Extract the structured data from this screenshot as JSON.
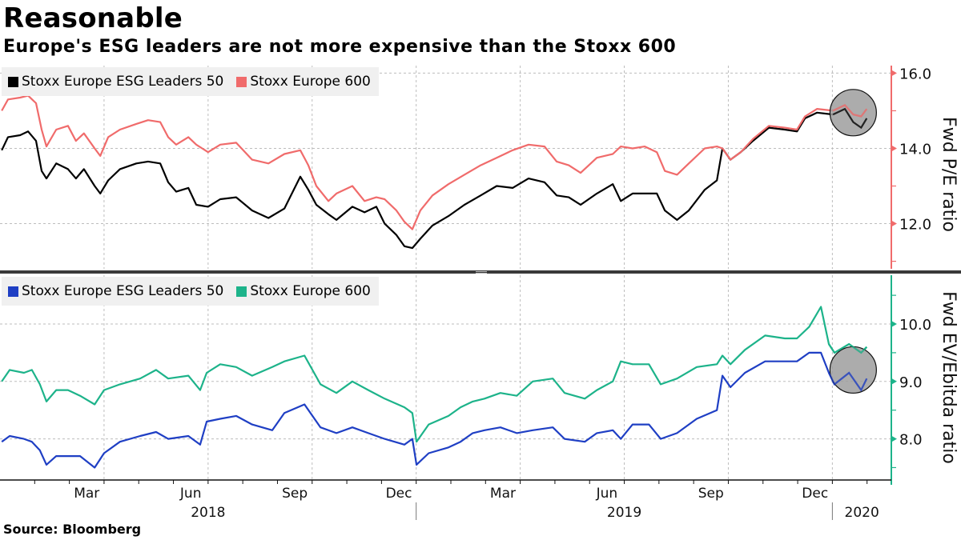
{
  "title": "Reasonable",
  "subtitle": "Europe's ESG leaders are not more expensive than the Stoxx 600",
  "source": "Source: Bloomberg",
  "colors": {
    "pe_esg": "#000000",
    "pe_stoxx": "#f06b6b",
    "pe_axis": "#f06b6b",
    "ev_esg": "#1f3fc4",
    "ev_stoxx": "#1db38a",
    "ev_axis": "#1db38a",
    "highlight": "#9e9e9e",
    "divider": "#3a3a3a"
  },
  "x_axis": {
    "unit": "months since Jan 2018",
    "month_labels": [
      {
        "label": "Mar",
        "month": 2.0
      },
      {
        "label": "Jun",
        "month": 5.0
      },
      {
        "label": "Sep",
        "month": 8.0
      },
      {
        "label": "Dec",
        "month": 11.0
      },
      {
        "label": "Mar",
        "month": 14.0
      },
      {
        "label": "Jun",
        "month": 17.0
      },
      {
        "label": "Sep",
        "month": 20.0
      },
      {
        "label": "Dec",
        "month": 23.0
      }
    ],
    "year_labels": [
      {
        "label": "2018",
        "month": 6.0
      },
      {
        "label": "2019",
        "month": 18.0
      },
      {
        "label": "2020",
        "month": 24.85
      }
    ],
    "year_dividers": [
      12.0,
      24.0
    ],
    "quarter_gridlines": [
      3,
      6,
      9,
      12,
      15,
      18,
      21,
      24
    ],
    "range": [
      0,
      25.7
    ]
  },
  "chart_data": [
    {
      "type": "line",
      "title": "Fwd P/E",
      "ylabel": "Fwd P/E ratio",
      "ylim": [
        10.8,
        16.2
      ],
      "yticks": [
        {
          "value": 16.0,
          "label": "16.0"
        },
        {
          "value": 14.0,
          "label": "14.0"
        },
        {
          "value": 12.0,
          "label": "12.0"
        }
      ],
      "minor_ticks": [
        15.0,
        13.0,
        11.0
      ],
      "grid": true,
      "legend_position": "top-left",
      "x": [
        0.05,
        0.23,
        0.58,
        0.81,
        1.04,
        1.2,
        1.34,
        1.62,
        1.96,
        2.19,
        2.42,
        2.73,
        2.89,
        3.12,
        3.46,
        3.93,
        4.27,
        4.62,
        4.85,
        5.08,
        5.43,
        5.66,
        6.0,
        6.35,
        6.81,
        7.27,
        7.74,
        8.2,
        8.66,
        8.89,
        9.12,
        9.47,
        9.7,
        10.16,
        10.51,
        10.85,
        11.09,
        11.43,
        11.66,
        11.89,
        12.12,
        12.47,
        12.93,
        13.39,
        13.86,
        14.32,
        14.78,
        15.24,
        15.7,
        16.05,
        16.4,
        16.74,
        17.21,
        17.67,
        17.9,
        18.24,
        18.59,
        18.94,
        19.17,
        19.52,
        19.86,
        20.32,
        20.67,
        20.83,
        21.06,
        21.36,
        21.71,
        22.17,
        22.63,
        22.98,
        23.21,
        23.56,
        24.02,
        24.36,
        24.6,
        24.83,
        24.99
      ],
      "series": [
        {
          "name": "Stoxx Europe ESG Leaders 50",
          "color_key": "pe_esg",
          "values": [
            13.95,
            14.3,
            14.35,
            14.45,
            14.2,
            13.4,
            13.2,
            13.6,
            13.45,
            13.2,
            13.45,
            13.0,
            12.8,
            13.15,
            13.45,
            13.6,
            13.65,
            13.6,
            13.1,
            12.85,
            12.95,
            12.5,
            12.45,
            12.65,
            12.7,
            12.35,
            12.15,
            12.4,
            13.25,
            12.9,
            12.5,
            12.25,
            12.1,
            12.45,
            12.3,
            12.45,
            12.0,
            11.7,
            11.4,
            11.35,
            11.6,
            11.95,
            12.2,
            12.5,
            12.75,
            13.0,
            12.95,
            13.2,
            13.1,
            12.75,
            12.7,
            12.5,
            12.8,
            13.05,
            12.6,
            12.8,
            12.8,
            12.8,
            12.35,
            12.1,
            12.35,
            12.9,
            13.15,
            14.0,
            13.7,
            13.9,
            14.2,
            14.55,
            14.5,
            14.45,
            14.8,
            14.95,
            14.9,
            15.05,
            14.7,
            14.55,
            14.8
          ]
        },
        {
          "name": "Stoxx Europe 600",
          "color_key": "pe_stoxx",
          "values": [
            15.0,
            15.3,
            15.35,
            15.4,
            15.2,
            14.5,
            14.05,
            14.5,
            14.6,
            14.2,
            14.4,
            14.0,
            13.8,
            14.3,
            14.5,
            14.65,
            14.75,
            14.7,
            14.3,
            14.1,
            14.3,
            14.1,
            13.9,
            14.1,
            14.15,
            13.7,
            13.6,
            13.85,
            13.95,
            13.55,
            13.0,
            12.6,
            12.8,
            13.0,
            12.6,
            12.7,
            12.65,
            12.35,
            12.05,
            11.85,
            12.35,
            12.75,
            13.05,
            13.3,
            13.55,
            13.75,
            13.95,
            14.1,
            14.05,
            13.65,
            13.55,
            13.35,
            13.75,
            13.85,
            14.05,
            14.0,
            14.05,
            13.9,
            13.4,
            13.3,
            13.6,
            14.0,
            14.05,
            14.0,
            13.7,
            13.9,
            14.25,
            14.6,
            14.55,
            14.5,
            14.85,
            15.05,
            15.0,
            15.15,
            14.9,
            14.85,
            15.05
          ]
        }
      ],
      "annotation": {
        "type": "circle-highlight",
        "center_month": 24.6,
        "center_value": 14.95,
        "label": ""
      }
    },
    {
      "type": "line",
      "title": "Fwd EV/Ebitda",
      "ylabel": "Fwd EV/Ebitda ratio",
      "ylim": [
        7.2,
        10.85
      ],
      "yticks": [
        {
          "value": 10.0,
          "label": "10.0"
        },
        {
          "value": 9.0,
          "label": "9.0"
        },
        {
          "value": 8.0,
          "label": "8.0"
        }
      ],
      "minor_ticks": [
        10.5,
        9.5,
        8.5,
        7.5
      ],
      "grid": true,
      "legend_position": "top-left",
      "x": [
        0.05,
        0.28,
        0.69,
        0.92,
        1.15,
        1.34,
        1.62,
        1.96,
        2.31,
        2.73,
        3.0,
        3.46,
        4.04,
        4.5,
        4.85,
        5.43,
        5.77,
        5.96,
        6.35,
        6.81,
        7.27,
        7.85,
        8.2,
        8.78,
        9.24,
        9.7,
        10.16,
        10.62,
        11.09,
        11.66,
        11.89,
        12.01,
        12.36,
        12.93,
        13.28,
        13.63,
        13.97,
        14.43,
        14.9,
        15.36,
        15.94,
        16.28,
        16.86,
        17.21,
        17.67,
        17.9,
        18.24,
        18.71,
        19.05,
        19.52,
        20.09,
        20.67,
        20.83,
        21.06,
        21.48,
        22.06,
        22.63,
        22.98,
        23.33,
        23.67,
        23.9,
        24.06,
        24.48,
        24.83,
        24.99
      ],
      "series": [
        {
          "name": "Stoxx Europe ESG Leaders 50",
          "color_key": "ev_esg",
          "values": [
            7.95,
            8.05,
            8.0,
            7.95,
            7.8,
            7.55,
            7.7,
            7.7,
            7.7,
            7.5,
            7.75,
            7.95,
            8.05,
            8.12,
            8.0,
            8.05,
            7.9,
            8.3,
            8.35,
            8.4,
            8.25,
            8.15,
            8.45,
            8.6,
            8.2,
            8.1,
            8.2,
            8.1,
            8.0,
            7.9,
            8.0,
            7.55,
            7.75,
            7.85,
            7.95,
            8.1,
            8.15,
            8.2,
            8.1,
            8.15,
            8.2,
            8.0,
            7.95,
            8.1,
            8.15,
            8.0,
            8.25,
            8.25,
            8.0,
            8.1,
            8.35,
            8.5,
            9.1,
            8.9,
            9.15,
            9.35,
            9.35,
            9.35,
            9.5,
            9.5,
            9.15,
            8.95,
            9.15,
            8.85,
            9.05
          ]
        },
        {
          "name": "Stoxx Europe 600",
          "color_key": "ev_stoxx",
          "values": [
            9.0,
            9.2,
            9.15,
            9.2,
            8.95,
            8.65,
            8.85,
            8.85,
            8.75,
            8.6,
            8.85,
            8.95,
            9.05,
            9.2,
            9.05,
            9.1,
            8.85,
            9.15,
            9.3,
            9.25,
            9.1,
            9.25,
            9.35,
            9.45,
            8.95,
            8.8,
            9.0,
            8.85,
            8.7,
            8.55,
            8.45,
            7.95,
            8.25,
            8.4,
            8.55,
            8.65,
            8.7,
            8.8,
            8.75,
            9.0,
            9.05,
            8.8,
            8.7,
            8.85,
            9.0,
            9.35,
            9.3,
            9.3,
            8.95,
            9.05,
            9.25,
            9.3,
            9.45,
            9.3,
            9.55,
            9.8,
            9.75,
            9.75,
            9.95,
            10.3,
            9.65,
            9.5,
            9.65,
            9.5,
            9.6
          ]
        }
      ],
      "annotation": {
        "type": "circle-highlight",
        "center_month": 24.6,
        "center_value": 9.2,
        "label": ""
      }
    }
  ]
}
